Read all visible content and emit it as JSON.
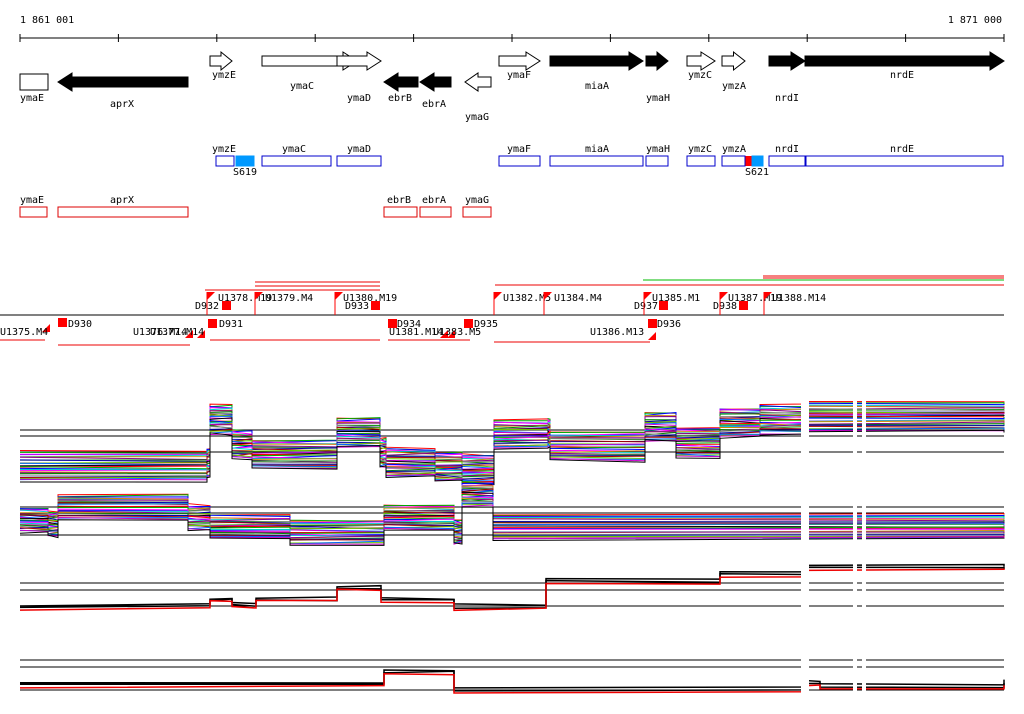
{
  "ruler": {
    "start": "1 861 001",
    "end": "1 871 000"
  },
  "genes": [
    "ymaE",
    "aprX",
    "ymzE",
    "ymaC",
    "ymaD",
    "ebrB",
    "ebrA",
    "ymaG",
    "ymaF",
    "miaA",
    "ymaH",
    "ymzC",
    "ymzA",
    "nrdI",
    "nrdE"
  ],
  "blue_features": [
    "ymzE",
    "S619",
    "ymaC",
    "ymaD",
    "ymaF",
    "miaA",
    "ymaH",
    "ymzC",
    "ymzA",
    "S621",
    "nrdI",
    "nrdE"
  ],
  "red_features": [
    "ymaE",
    "aprX",
    "ebrB",
    "ebrA",
    "ymaG"
  ],
  "segments": [
    "U1375.M4",
    "D930",
    "U1376.M14",
    "U1377.M14",
    "D932",
    "D931",
    "U1378.M19",
    "U1379.M4",
    "U1380.M19",
    "D933",
    "D934",
    "U1381.M14",
    "U1383.M5",
    "D935",
    "U1382.M5",
    "U1384.M4",
    "D937",
    "U1385.M1",
    "D936",
    "U1386.M13",
    "D938",
    "U1387.M19",
    "U1388.M14"
  ]
}
